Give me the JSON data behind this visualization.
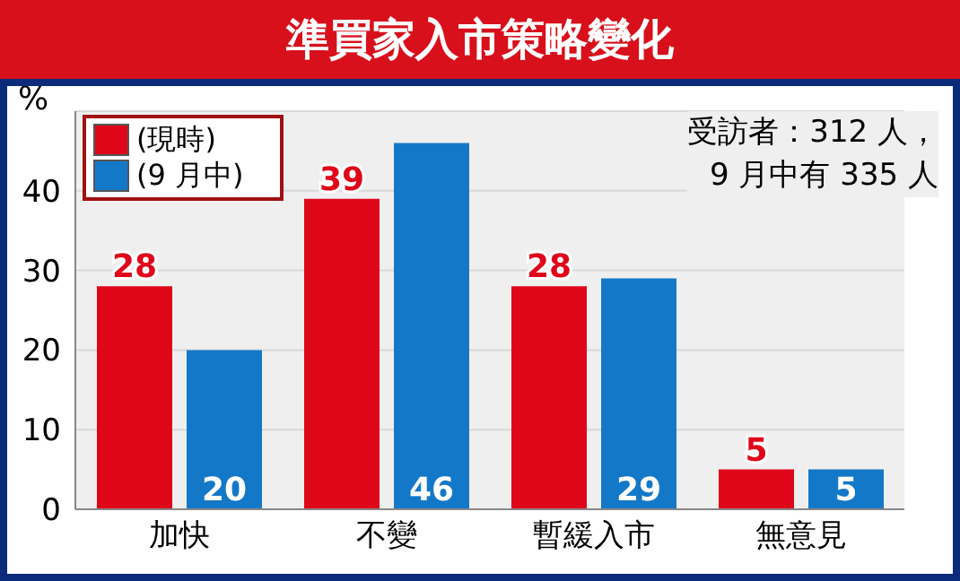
{
  "chart_data": {
    "type": "bar",
    "title": "準買家入市策略變化",
    "ylabel": "%",
    "categories": [
      "加快",
      "不變",
      "暫緩入市",
      "無意見"
    ],
    "series": [
      {
        "name": "(現時)",
        "color": "#e0061a",
        "values": [
          28,
          39,
          28,
          5
        ]
      },
      {
        "name": "(9 月中)",
        "color": "#1478c8",
        "values": [
          20,
          46,
          29,
          5
        ]
      }
    ],
    "ylim": [
      0,
      50
    ],
    "yticks": [
      0,
      10,
      20,
      30,
      40
    ],
    "grid": "y",
    "legend": "top left",
    "data_labels": true,
    "annotations": [
      "受訪者：312 人，",
      "9 月中有 335 人"
    ]
  }
}
